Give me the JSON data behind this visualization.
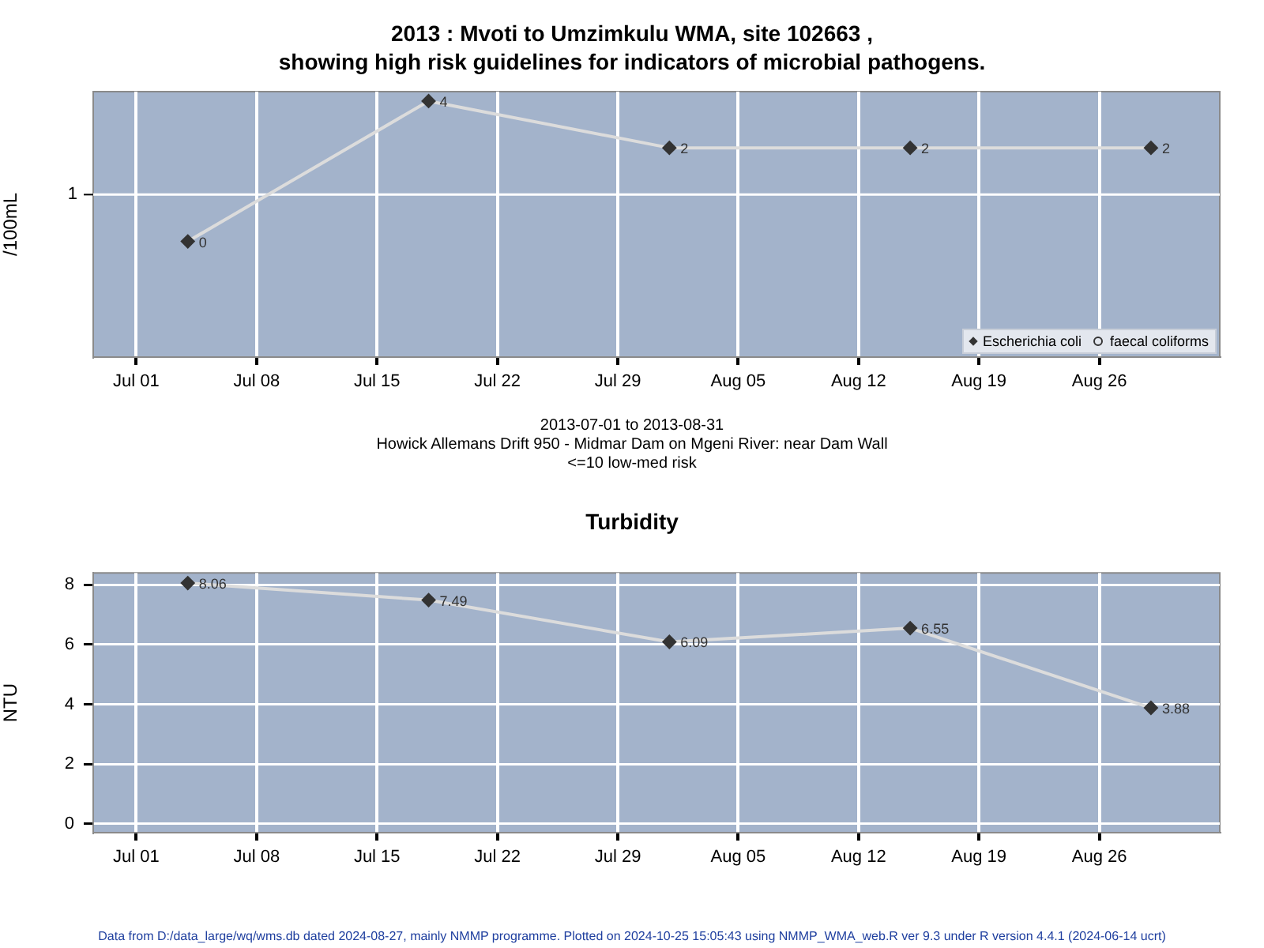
{
  "chart_data": [
    {
      "type": "line",
      "title": "2013 : Mvoti to Umzimkulu WMA, site 102663 ,\nshowing high risk guidelines for indicators of microbial pathogens.",
      "ylabel": "/100mL",
      "x": [
        "2013-07-04",
        "2013-07-18",
        "2013-08-01",
        "2013-08-15",
        "2013-08-29"
      ],
      "series": [
        {
          "name": "Escherichia coli",
          "color": "#dcdcdc",
          "colors": [
            "#333333",
            "#333333",
            "#333333",
            "#333333",
            "#333333"
          ],
          "marker": "diamond",
          "values": [
            0.5,
            4,
            2,
            2,
            2
          ],
          "value_labels": [
            "0",
            "4",
            "2",
            "2",
            "2"
          ]
        },
        {
          "name": "faecal coliforms",
          "color": "#333333",
          "marker": "circle",
          "values": [
            null,
            null,
            null,
            null,
            null
          ]
        }
      ],
      "log": "y",
      "ylim": [
        0.09,
        4.6
      ],
      "ref_lines": [
        {
          "axis": "y",
          "value": 1,
          "label": "1",
          "color": "#ffffff"
        }
      ],
      "xlim": [
        "2013-06-28T12:00",
        "2013-09-02"
      ],
      "xticks": [
        {
          "value": "2013-07-01",
          "label": "Jul 01"
        },
        {
          "value": "2013-07-08",
          "label": "Jul 08"
        },
        {
          "value": "2013-07-15",
          "label": "Jul 15"
        },
        {
          "value": "2013-07-22",
          "label": "Jul 22"
        },
        {
          "value": "2013-07-29",
          "label": "Jul 29"
        },
        {
          "value": "2013-08-05",
          "label": "Aug 05"
        },
        {
          "value": "2013-08-12",
          "label": "Aug 12"
        },
        {
          "value": "2013-08-19",
          "label": "Aug 19"
        },
        {
          "value": "2013-08-26",
          "label": "Aug 26"
        }
      ],
      "grid": true,
      "legend": "bottom right",
      "annotations": [
        "2013-07-01 to 2013-08-31",
        "Howick Allemans Drift 950 - Midmar Dam on Mgeni River: near Dam Wall",
        "<=10 low-med risk"
      ]
    },
    {
      "type": "line",
      "title": "Turbidity",
      "ylabel": "NTU",
      "x": [
        "2013-07-04",
        "2013-07-18",
        "2013-08-01",
        "2013-08-15",
        "2013-08-29"
      ],
      "series": [
        {
          "color": "#dcdcdc",
          "colors": [
            "#333333",
            "#333333",
            "#333333",
            "#333333",
            "#333333"
          ],
          "marker": "diamond",
          "values": [
            8.06,
            7.49,
            6.09,
            6.55,
            3.88
          ]
        }
      ],
      "data_labels": true,
      "ylim": [
        -0.3,
        8.4
      ],
      "yticks": [
        0,
        2,
        4,
        6,
        8
      ],
      "xlim": [
        "2013-06-28T12:00",
        "2013-09-02"
      ],
      "xticks": [
        {
          "value": "2013-07-01",
          "label": "Jul 01"
        },
        {
          "value": "2013-07-08",
          "label": "Jul 08"
        },
        {
          "value": "2013-07-15",
          "label": "Jul 15"
        },
        {
          "value": "2013-07-22",
          "label": "Jul 22"
        },
        {
          "value": "2013-07-29",
          "label": "Jul 29"
        },
        {
          "value": "2013-08-05",
          "label": "Aug 05"
        },
        {
          "value": "2013-08-12",
          "label": "Aug 12"
        },
        {
          "value": "2013-08-19",
          "label": "Aug 19"
        },
        {
          "value": "2013-08-26",
          "label": "Aug 26"
        }
      ],
      "grid": true,
      "annotations": [
        "Data from D:/data_large/wq/wms.db dated 2024-08-27, mainly NMMP programme. Plotted on 2024-10-25 15:05:43 using NMMP_WMA_web.R ver 9.3 under R version 4.4.1 (2024-06-14 ucrt)"
      ]
    }
  ]
}
